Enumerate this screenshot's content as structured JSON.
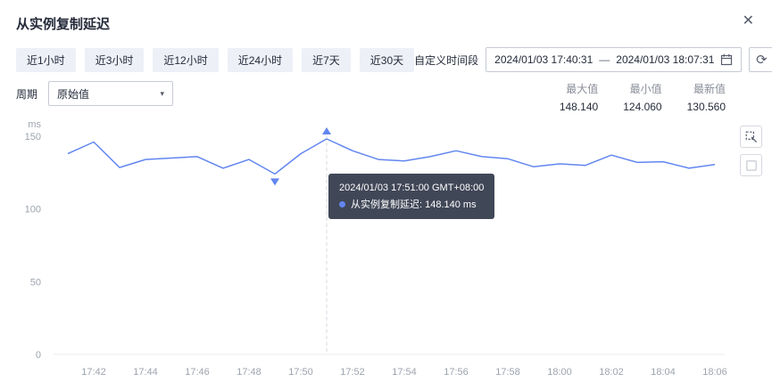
{
  "page": {
    "title": "从实例复制延迟"
  },
  "icons": {
    "close": "✕",
    "refresh": "⟳",
    "chevron_down": "▾"
  },
  "time_ranges": [
    "近1小时",
    "近3小时",
    "近12小时",
    "近24小时",
    "近7天",
    "近30天"
  ],
  "custom_range": {
    "label": "自定义时间段",
    "start": "2024/01/03 17:40:31",
    "separator": "—",
    "end": "2024/01/03 18:07:31"
  },
  "period": {
    "label": "周期",
    "value": "原始值"
  },
  "stats": [
    {
      "label": "最大值",
      "value": "148.140"
    },
    {
      "label": "最小值",
      "value": "124.060"
    },
    {
      "label": "最新值",
      "value": "130.560"
    }
  ],
  "tooltip": {
    "time": "2024/01/03 17:51:00 GMT+08:00",
    "line2": "从实例复制延迟: 148.140 ms"
  },
  "chart_data": {
    "type": "line",
    "title": "从实例复制延迟",
    "unit": "ms",
    "color": "#6286f0",
    "ylim": [
      0,
      150
    ],
    "yticks": [
      0,
      50,
      100,
      150
    ],
    "x": [
      "17:41",
      "17:42",
      "17:43",
      "17:44",
      "17:45",
      "17:46",
      "17:47",
      "17:48",
      "17:49",
      "17:50",
      "17:51",
      "17:52",
      "17:53",
      "17:54",
      "17:55",
      "17:56",
      "17:57",
      "17:58",
      "17:59",
      "18:00",
      "18:01",
      "18:02",
      "18:03",
      "18:04",
      "18:05",
      "18:06"
    ],
    "values": [
      138,
      146,
      128.5,
      134,
      135,
      136,
      128,
      134,
      124.06,
      138,
      148.14,
      140,
      134,
      133,
      136,
      140,
      136,
      134.5,
      129,
      131,
      130,
      137,
      132,
      132.5,
      128,
      130.56
    ],
    "x_tick_labels": [
      "17:42",
      "17:44",
      "17:46",
      "17:48",
      "17:50",
      "17:52",
      "17:54",
      "17:56",
      "17:58",
      "18:00",
      "18:02",
      "18:04",
      "18:06"
    ],
    "max": {
      "index": 10,
      "value": 148.14
    },
    "min": {
      "index": 8,
      "value": 124.06
    },
    "legend_position": "none",
    "grid": false
  }
}
